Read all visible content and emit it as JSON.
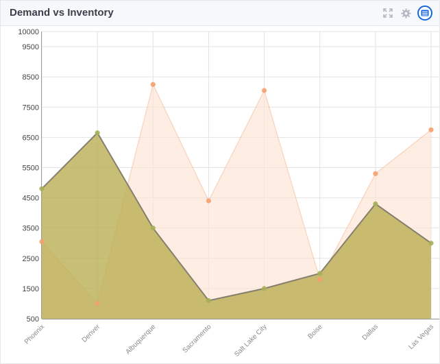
{
  "widget": {
    "title": "Demand vs Inventory",
    "icons": {
      "expand": "expand-icon",
      "settings": "gear-icon",
      "menu": "menu-icon"
    },
    "colors": {
      "header_bg": "#f7f8fb",
      "menu_icon": "#1565e0"
    }
  },
  "chart_data": {
    "type": "area",
    "categories": [
      "Phoenix",
      "Denver",
      "Albuquerque",
      "Sacramento",
      "Salt Lake City",
      "Boise",
      "Dallas",
      "Las Vegas"
    ],
    "series": [
      {
        "values": [
          3050,
          1000,
          8250,
          4400,
          8050,
          1800,
          5300,
          6750
        ],
        "color": "#f5a77a",
        "fill": "#fde3d3",
        "marker": "#f3a070"
      },
      {
        "values": [
          4800,
          6650,
          3500,
          1100,
          1500,
          2000,
          4300,
          3000
        ],
        "color": "#857f6e",
        "fill": "#b9ad4f",
        "marker": "#a7b05a"
      }
    ],
    "y_ticks": [
      "10000",
      "9500",
      "8500",
      "7500",
      "6500",
      "5500",
      "4500",
      "3500",
      "2500",
      "1500",
      "500"
    ],
    "ylim": [
      500,
      10000
    ],
    "grid": true,
    "legend": "none"
  }
}
